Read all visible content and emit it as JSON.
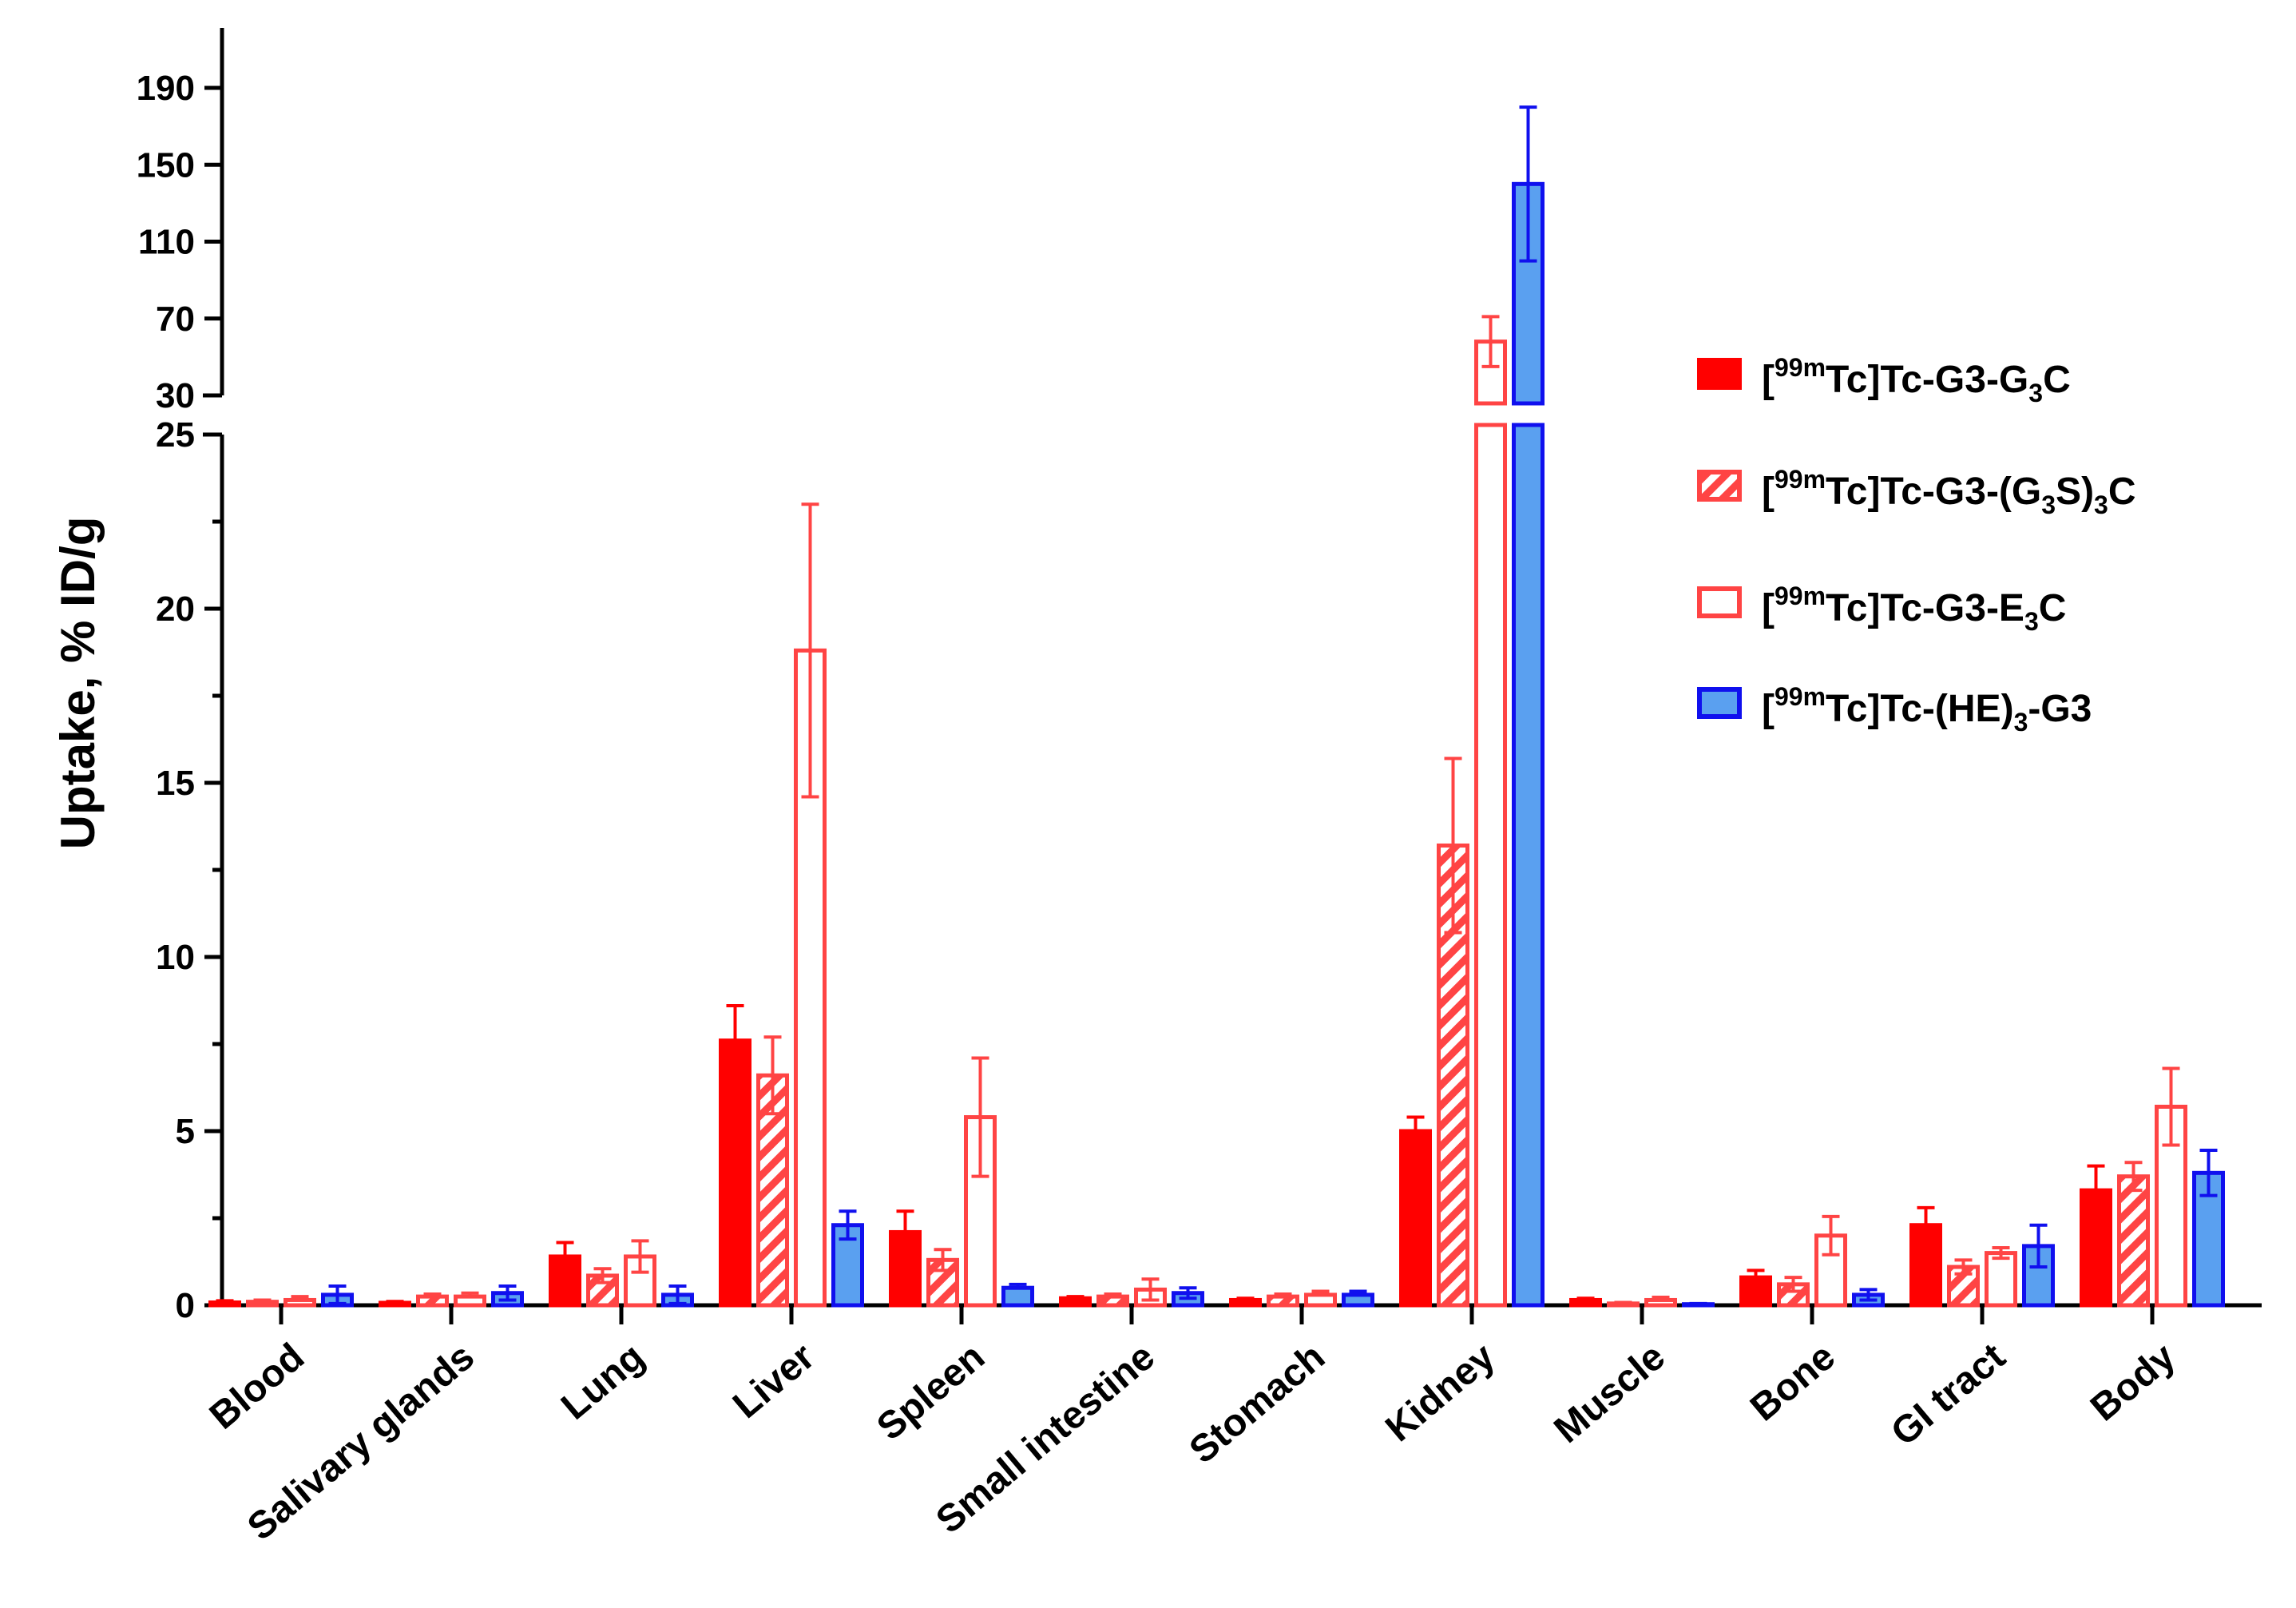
{
  "chart_data": {
    "type": "bar",
    "title": "",
    "xlabel": "",
    "ylabel": "Uptake, % ID/g",
    "y_axis_segments": [
      {
        "name": "lower",
        "ylim": [
          0,
          25
        ],
        "major_ticks": [
          0,
          5,
          10,
          15,
          20,
          25
        ],
        "tick_labels": [
          "0",
          "5",
          "10",
          "15",
          "20",
          "25"
        ]
      },
      {
        "name": "upper",
        "ylim": [
          30,
          220
        ],
        "major_ticks": [
          30,
          70,
          110,
          150,
          190
        ],
        "tick_labels": [
          "30",
          "70",
          "110",
          "150",
          "190"
        ]
      }
    ],
    "categories": [
      "Blood",
      "Salivary glands",
      "Lung",
      "Liver",
      "Spleen",
      "Small intestine",
      "Stomach",
      "Kidney",
      "Muscle",
      "Bone",
      "GI tract",
      "Body"
    ],
    "series": [
      {
        "name": "[99mTc]Tc-G3-G3C",
        "legend": {
          "prefix": "[",
          "sup": "99m",
          "parts": [
            {
              "t": "Tc]Tc-G3-G"
            },
            {
              "sub": "3"
            },
            {
              "t": "C"
            }
          ]
        },
        "style": "solid",
        "color": "#ff0000",
        "values": [
          0.08,
          0.07,
          1.4,
          7.6,
          2.1,
          0.2,
          0.15,
          5.0,
          0.15,
          0.8,
          2.3,
          3.3
        ],
        "errors": [
          0.05,
          0.04,
          0.4,
          1.0,
          0.6,
          0.05,
          0.05,
          0.4,
          0.05,
          0.2,
          0.5,
          0.7
        ]
      },
      {
        "name": "[99mTc]Tc-G3-(G3S)3C",
        "legend": {
          "prefix": "[",
          "sup": "99m",
          "parts": [
            {
              "t": "Tc]Tc-G3-(G"
            },
            {
              "sub": "3"
            },
            {
              "t": "S)"
            },
            {
              "sub": "3"
            },
            {
              "t": "C"
            }
          ]
        },
        "style": "hatched",
        "color": "#ff4444",
        "values": [
          0.1,
          0.25,
          0.85,
          6.6,
          1.3,
          0.25,
          0.25,
          13.2,
          0.05,
          0.6,
          1.1,
          3.7
        ],
        "errors": [
          0.05,
          0.07,
          0.2,
          1.1,
          0.3,
          0.07,
          0.07,
          2.5,
          0.03,
          0.2,
          0.2,
          0.4
        ]
      },
      {
        "name": "[99mTc]Tc-G3-E3C",
        "legend": {
          "prefix": "[",
          "sup": "99m",
          "parts": [
            {
              "t": "Tc]Tc-G3-E"
            },
            {
              "sub": "3"
            },
            {
              "t": "C"
            }
          ]
        },
        "style": "open",
        "color": "#ff4444",
        "values": [
          0.15,
          0.25,
          1.4,
          18.8,
          5.4,
          0.45,
          0.3,
          58,
          0.15,
          2.0,
          1.5,
          5.7
        ],
        "errors": [
          0.1,
          0.1,
          0.45,
          4.2,
          1.7,
          0.3,
          0.1,
          13,
          0.08,
          0.55,
          0.15,
          1.1
        ]
      },
      {
        "name": "[99mTc]Tc-(HE)3-G3",
        "legend": {
          "prefix": "[",
          "sup": "99m",
          "parts": [
            {
              "t": "Tc]Tc-(HE)"
            },
            {
              "sub": "3"
            },
            {
              "t": "-G3"
            }
          ]
        },
        "style": "blue",
        "color": "#1010ee",
        "fill": "#5aa0f0",
        "values": [
          0.3,
          0.35,
          0.3,
          2.3,
          0.5,
          0.35,
          0.3,
          140,
          0.03,
          0.3,
          1.7,
          3.8
        ],
        "errors": [
          0.25,
          0.2,
          0.25,
          0.4,
          0.1,
          0.15,
          0.1,
          40,
          0.02,
          0.15,
          0.6,
          0.65
        ]
      }
    ],
    "legend_position": "right"
  }
}
